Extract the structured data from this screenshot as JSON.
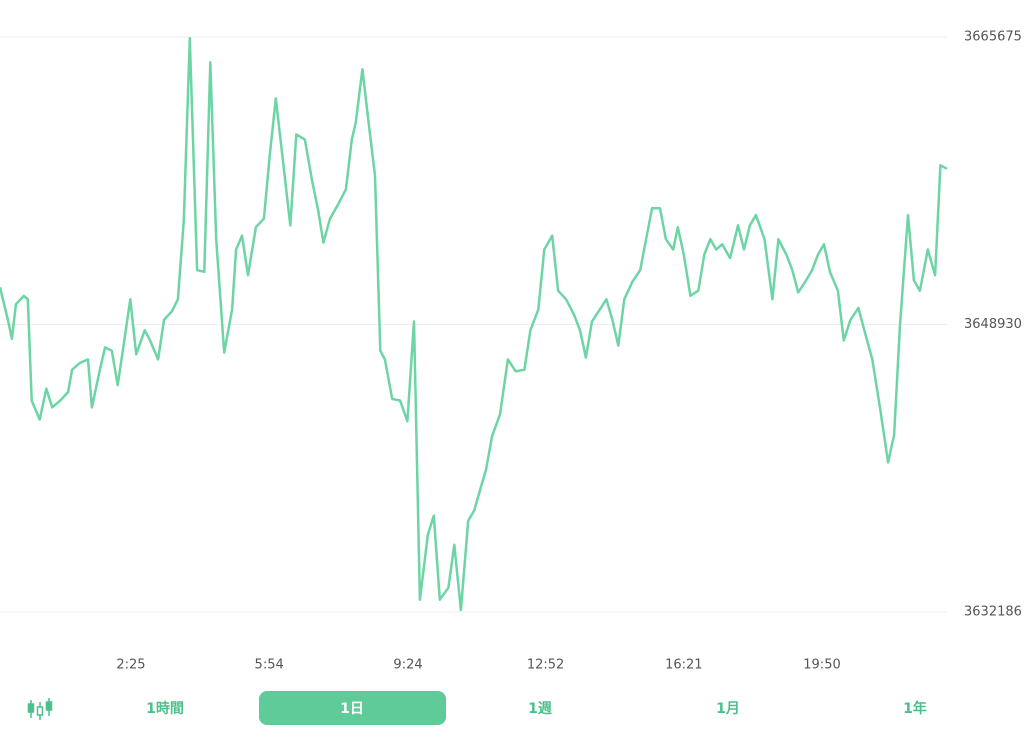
{
  "chart_data": {
    "type": "line",
    "x": [
      -53,
      -41,
      -35,
      -29,
      -17,
      -11,
      -5,
      7,
      17,
      26,
      38,
      50,
      56,
      68,
      80,
      86,
      98,
      106,
      116,
      125,
      135,
      144,
      153,
      166,
      174,
      186,
      195,
      207,
      216,
      225,
      234,
      245,
      256,
      265,
      274,
      286,
      298,
      304,
      313,
      322,
      334,
      346,
      355,
      364,
      373,
      386,
      395,
      408,
      419,
      428,
      436,
      446,
      458,
      470,
      479,
      485,
      495,
      504,
      514,
      522,
      529,
      540,
      552,
      563,
      573,
      582,
      594,
      603,
      612,
      625,
      634,
      644,
      655,
      664,
      673,
      682,
      691,
      703,
      715,
      727,
      740,
      749,
      761,
      770,
      782,
      791,
      803,
      815,
      824,
      833,
      842,
      854,
      864,
      873,
      882,
      891,
      903,
      915,
      924,
      933,
      945,
      954,
      965,
      972,
      981,
      991,
      1003,
      1012,
      1021,
      1030,
      1039,
      1051,
      1063,
      1072,
      1081,
      1090,
      1103,
      1115,
      1124,
      1136,
      1145,
      1154,
      1166,
      1175,
      1184,
      1193,
      1202,
      1214,
      1223,
      1233,
      1245,
      1254,
      1266,
      1278,
      1290,
      1299,
      1308,
      1320,
      1329,
      1338,
      1350,
      1361,
      1369,
      1379
    ],
    "series": [
      {
        "color": "#6dd5a4",
        "values": [
          3651100,
          3649200,
          3648100,
          3650100,
          3650600,
          3650400,
          3644500,
          3643400,
          3645200,
          3644100,
          3644500,
          3645000,
          3646300,
          3646700,
          3646900,
          3644100,
          3646300,
          3647600,
          3647400,
          3645400,
          3648000,
          3650400,
          3647200,
          3648600,
          3648000,
          3646900,
          3649200,
          3649700,
          3650400,
          3655000,
          3665600,
          3652100,
          3652000,
          3664200,
          3653900,
          3647300,
          3649800,
          3653300,
          3654100,
          3651800,
          3654600,
          3655100,
          3658800,
          3662100,
          3659100,
          3654700,
          3660000,
          3659700,
          3657300,
          3655600,
          3653700,
          3655100,
          3655900,
          3656800,
          3659700,
          3660700,
          3663800,
          3660800,
          3657600,
          3647400,
          3646900,
          3644600,
          3644500,
          3643300,
          3649100,
          3632900,
          3636700,
          3637800,
          3632900,
          3633600,
          3636100,
          3632300,
          3637500,
          3638100,
          3639300,
          3640500,
          3642400,
          3643700,
          3646900,
          3646200,
          3646300,
          3648600,
          3649800,
          3653300,
          3654100,
          3650900,
          3650400,
          3649500,
          3648600,
          3647000,
          3649100,
          3649800,
          3650400,
          3649200,
          3647700,
          3650400,
          3651400,
          3652100,
          3653900,
          3655700,
          3655700,
          3653900,
          3653300,
          3654600,
          3653000,
          3650600,
          3650900,
          3653000,
          3653900,
          3653300,
          3653600,
          3652800,
          3654700,
          3653300,
          3654700,
          3655300,
          3653900,
          3650400,
          3653900,
          3653000,
          3652100,
          3650800,
          3651500,
          3652100,
          3653000,
          3653600,
          3652000,
          3650900,
          3648000,
          3649200,
          3649900,
          3648600,
          3646900,
          3644000,
          3640900,
          3642500,
          3648900,
          3655300,
          3651500,
          3650900,
          3653300,
          3651800,
          3658200,
          3658000
        ]
      }
    ],
    "xlim": [
      -53,
      1379
    ],
    "xticks": [
      {
        "value": 145,
        "label": "2:25"
      },
      {
        "value": 354,
        "label": "5:54"
      },
      {
        "value": 564,
        "label": "9:24"
      },
      {
        "value": 772,
        "label": "12:52"
      },
      {
        "value": 981,
        "label": "16:21"
      },
      {
        "value": 1190,
        "label": "19:50"
      }
    ],
    "ylim": [
      3632186,
      3665675
    ],
    "yticks": [
      3632186,
      3648930,
      3665675
    ],
    "grid": true
  },
  "periods": {
    "options": [
      "1時間",
      "1日",
      "1週",
      "1月",
      "1年"
    ],
    "selected": 1
  }
}
